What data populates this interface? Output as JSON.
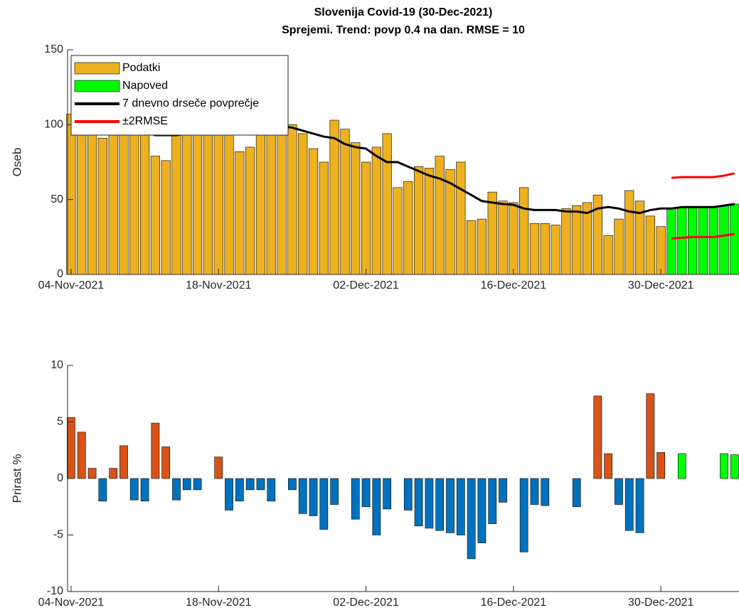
{
  "chart_data": [
    {
      "type": "bar",
      "title": "Slovenija Covid-19 (30-Dec-2021)",
      "subtitle": "Sprejemi. Trend: povp 0.4 na dan. RMSE = 10",
      "ylabel": "Oseb",
      "x": [
        "2021-11-04",
        "2021-11-05",
        "2021-11-06",
        "2021-11-07",
        "2021-11-08",
        "2021-11-09",
        "2021-11-10",
        "2021-11-11",
        "2021-11-12",
        "2021-11-13",
        "2021-11-14",
        "2021-11-15",
        "2021-11-16",
        "2021-11-17",
        "2021-11-18",
        "2021-11-19",
        "2021-11-20",
        "2021-11-21",
        "2021-11-22",
        "2021-11-23",
        "2021-11-24",
        "2021-11-25",
        "2021-11-26",
        "2021-11-27",
        "2021-11-28",
        "2021-11-29",
        "2021-11-30",
        "2021-12-01",
        "2021-12-02",
        "2021-12-03",
        "2021-12-04",
        "2021-12-05",
        "2021-12-06",
        "2021-12-07",
        "2021-12-08",
        "2021-12-09",
        "2021-12-10",
        "2021-12-11",
        "2021-12-12",
        "2021-12-13",
        "2021-12-14",
        "2021-12-15",
        "2021-12-16",
        "2021-12-17",
        "2021-12-18",
        "2021-12-19",
        "2021-12-20",
        "2021-12-21",
        "2021-12-22",
        "2021-12-23",
        "2021-12-24",
        "2021-12-25",
        "2021-12-26",
        "2021-12-27",
        "2021-12-28",
        "2021-12-29",
        "2021-12-30",
        "2021-12-31",
        "2022-01-01",
        "2022-01-02",
        "2022-01-03",
        "2022-01-04",
        "2022-01-05",
        "2022-01-06"
      ],
      "xlim": [
        "2021-11-03T16:00Z",
        "2022-01-06T10:00Z"
      ],
      "xticks": [
        {
          "value": "2021-11-04",
          "label": "04-Nov-2021"
        },
        {
          "value": "2021-11-18",
          "label": "18-Nov-2021"
        },
        {
          "value": "2021-12-02",
          "label": "02-Dec-2021"
        },
        {
          "value": "2021-12-16",
          "label": "16-Dec-2021"
        },
        {
          "value": "2021-12-30",
          "label": "30-Dec-2021"
        }
      ],
      "ylim": [
        0,
        150
      ],
      "yticks": [
        0,
        50,
        100,
        150
      ],
      "legend": "upper left",
      "series": [
        {
          "name": "Podatki",
          "type": "bar",
          "color": "#edb120",
          "values": [
            107,
            100,
            99,
            91,
            95,
            96,
            98,
            96,
            79,
            76,
            100,
            98,
            98,
            98,
            98,
            98,
            82,
            85,
            100,
            102,
            100,
            100,
            94,
            84,
            75,
            103,
            97,
            88,
            75,
            85,
            94,
            58,
            62,
            72,
            71,
            79,
            70,
            75,
            36,
            37,
            55,
            49,
            48,
            58,
            34,
            34,
            33,
            44,
            46,
            48,
            53,
            26,
            37,
            56,
            49,
            39,
            32,
            null,
            null,
            null,
            null,
            null,
            null,
            null
          ]
        },
        {
          "name": "Napoved",
          "type": "bar",
          "color": "#00ff00",
          "values": [
            null,
            null,
            null,
            null,
            null,
            null,
            null,
            null,
            null,
            null,
            null,
            null,
            null,
            null,
            null,
            null,
            null,
            null,
            null,
            null,
            null,
            null,
            null,
            null,
            null,
            null,
            null,
            null,
            null,
            null,
            null,
            null,
            null,
            null,
            null,
            null,
            null,
            null,
            null,
            null,
            null,
            null,
            null,
            null,
            null,
            null,
            null,
            null,
            null,
            null,
            null,
            null,
            null,
            null,
            null,
            null,
            null,
            44,
            45,
            45,
            45,
            45,
            46,
            47
          ]
        },
        {
          "name": "7 dnevno drseče povprečje",
          "type": "line",
          "color": "#000000",
          "values": [
            null,
            null,
            null,
            null,
            null,
            null,
            96,
            95,
            93,
            93,
            93,
            94,
            95,
            95,
            95,
            94,
            95,
            96,
            96,
            97,
            99,
            98,
            96,
            94,
            92,
            91,
            87,
            85,
            84,
            79,
            75,
            75,
            72,
            69,
            66,
            64,
            61,
            57,
            53,
            49,
            48,
            47,
            46.5,
            44,
            43,
            43,
            43,
            42,
            42,
            41,
            44,
            45,
            44,
            42,
            41,
            43,
            44,
            44,
            45,
            45,
            45,
            45,
            46,
            47
          ]
        },
        {
          "name": "±2RMSE",
          "type": "line",
          "color": "#ff0000",
          "values": [
            null,
            null,
            null,
            null,
            null,
            null,
            null,
            null,
            null,
            null,
            null,
            null,
            null,
            null,
            null,
            null,
            null,
            null,
            null,
            null,
            null,
            null,
            null,
            null,
            null,
            null,
            null,
            null,
            null,
            null,
            null,
            null,
            null,
            null,
            null,
            null,
            null,
            null,
            null,
            null,
            null,
            null,
            null,
            null,
            null,
            null,
            null,
            null,
            null,
            null,
            null,
            null,
            null,
            null,
            null,
            null,
            null,
            64.5,
            65,
            65,
            65,
            65,
            66,
            67.5
          ],
          "lower": [
            null,
            null,
            null,
            null,
            null,
            null,
            null,
            null,
            null,
            null,
            null,
            null,
            null,
            null,
            null,
            null,
            null,
            null,
            null,
            null,
            null,
            null,
            null,
            null,
            null,
            null,
            null,
            null,
            null,
            null,
            null,
            null,
            null,
            null,
            null,
            null,
            null,
            null,
            null,
            null,
            null,
            null,
            null,
            null,
            null,
            null,
            null,
            null,
            null,
            null,
            null,
            null,
            null,
            null,
            null,
            null,
            null,
            24,
            24.5,
            25,
            25,
            25,
            26,
            27
          ]
        }
      ]
    },
    {
      "type": "bar",
      "ylabel": "Prirast %",
      "x": [
        "2021-11-04",
        "2021-11-05",
        "2021-11-06",
        "2021-11-07",
        "2021-11-08",
        "2021-11-09",
        "2021-11-10",
        "2021-11-11",
        "2021-11-12",
        "2021-11-13",
        "2021-11-14",
        "2021-11-15",
        "2021-11-16",
        "2021-11-17",
        "2021-11-18",
        "2021-11-19",
        "2021-11-20",
        "2021-11-21",
        "2021-11-22",
        "2021-11-23",
        "2021-11-24",
        "2021-11-25",
        "2021-11-26",
        "2021-11-27",
        "2021-11-28",
        "2021-11-29",
        "2021-11-30",
        "2021-12-01",
        "2021-12-02",
        "2021-12-03",
        "2021-12-04",
        "2021-12-05",
        "2021-12-06",
        "2021-12-07",
        "2021-12-08",
        "2021-12-09",
        "2021-12-10",
        "2021-12-11",
        "2021-12-12",
        "2021-12-13",
        "2021-12-14",
        "2021-12-15",
        "2021-12-16",
        "2021-12-17",
        "2021-12-18",
        "2021-12-19",
        "2021-12-20",
        "2021-12-21",
        "2021-12-22",
        "2021-12-23",
        "2021-12-24",
        "2021-12-25",
        "2021-12-26",
        "2021-12-27",
        "2021-12-28",
        "2021-12-29",
        "2021-12-30",
        "2021-12-31",
        "2022-01-01",
        "2022-01-02",
        "2022-01-03",
        "2022-01-04",
        "2022-01-05",
        "2022-01-06"
      ],
      "xlim": [
        "2021-11-03T16:00Z",
        "2022-01-06T10:00Z"
      ],
      "xticks": [
        {
          "value": "2021-11-04",
          "label": "04-Nov-2021"
        },
        {
          "value": "2021-11-18",
          "label": "18-Nov-2021"
        },
        {
          "value": "2021-12-02",
          "label": "02-Dec-2021"
        },
        {
          "value": "2021-12-16",
          "label": "16-Dec-2021"
        },
        {
          "value": "2021-12-30",
          "label": "30-Dec-2021"
        }
      ],
      "ylim": [
        -10,
        10
      ],
      "yticks": [
        -10,
        -5,
        0,
        5,
        10
      ],
      "series": [
        {
          "type": "bar",
          "positive_color": "#d95319",
          "negative_color": "#0072bd",
          "values": [
            5.4,
            4.1,
            0.9,
            -2.0,
            0.9,
            2.9,
            -1.9,
            -2.0,
            4.9,
            2.8,
            -1.9,
            -1.0,
            -1.0,
            0,
            1.9,
            -2.8,
            -2.0,
            -1.0,
            -1.0,
            -2.0,
            0,
            -1.0,
            -3.1,
            -3.3,
            -4.5,
            -2.3,
            0,
            -3.6,
            -2.5,
            -5.0,
            -2.7,
            0,
            -2.8,
            -4.2,
            -4.4,
            -4.6,
            -4.8,
            -5.0,
            -7.1,
            -5.7,
            -4.0,
            -2.1,
            0,
            -6.5,
            -2.3,
            -2.4,
            0,
            0,
            -2.5,
            0,
            7.3,
            2.2,
            -2.3,
            -4.6,
            -4.8,
            7.5,
            2.3,
            null,
            null,
            null,
            null,
            null,
            null,
            null
          ]
        },
        {
          "type": "bar",
          "color": "#00ff00",
          "values": [
            null,
            null,
            null,
            null,
            null,
            null,
            null,
            null,
            null,
            null,
            null,
            null,
            null,
            null,
            null,
            null,
            null,
            null,
            null,
            null,
            null,
            null,
            null,
            null,
            null,
            null,
            null,
            null,
            null,
            null,
            null,
            null,
            null,
            null,
            null,
            null,
            null,
            null,
            null,
            null,
            null,
            null,
            null,
            null,
            null,
            null,
            null,
            null,
            null,
            null,
            null,
            null,
            null,
            null,
            null,
            null,
            null,
            0,
            2.2,
            0,
            0,
            0,
            2.2,
            2.1
          ]
        }
      ]
    }
  ]
}
